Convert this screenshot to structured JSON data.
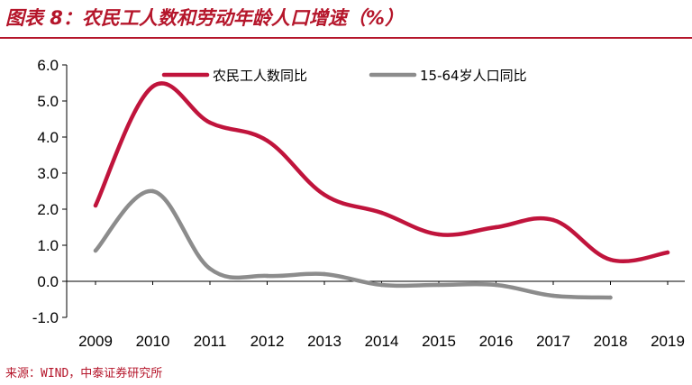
{
  "title": "图表 8：农民工人数和劳动年龄人口增速（%）",
  "source": "来源：WIND，中泰证券研究所",
  "colors": {
    "accent": "#b5162b",
    "series1": "#c0143c",
    "series2": "#8c8c8c"
  },
  "chart_data": {
    "type": "line",
    "title": "图表 8：农民工人数和劳动年龄人口增速（%）",
    "xlabel": "",
    "ylabel": "",
    "x": [
      "2009",
      "2010",
      "2011",
      "2012",
      "2013",
      "2014",
      "2015",
      "2016",
      "2017",
      "2018",
      "2019"
    ],
    "ylim": [
      -1.0,
      6.0
    ],
    "yticks": [
      "6.0",
      "5.0",
      "4.0",
      "3.0",
      "2.0",
      "1.0",
      "0.0",
      "-1.0"
    ],
    "grid": false,
    "legend": "top",
    "series": [
      {
        "name": "农民工人数同比",
        "color": "#c0143c",
        "values": [
          2.1,
          5.4,
          4.4,
          3.9,
          2.4,
          1.9,
          1.3,
          1.5,
          1.7,
          0.6,
          0.8
        ]
      },
      {
        "name": "15-64岁人口同比",
        "color": "#8c8c8c",
        "values": [
          0.85,
          2.5,
          0.35,
          0.15,
          0.2,
          -0.1,
          -0.1,
          -0.1,
          -0.4,
          -0.45,
          null
        ]
      }
    ]
  }
}
